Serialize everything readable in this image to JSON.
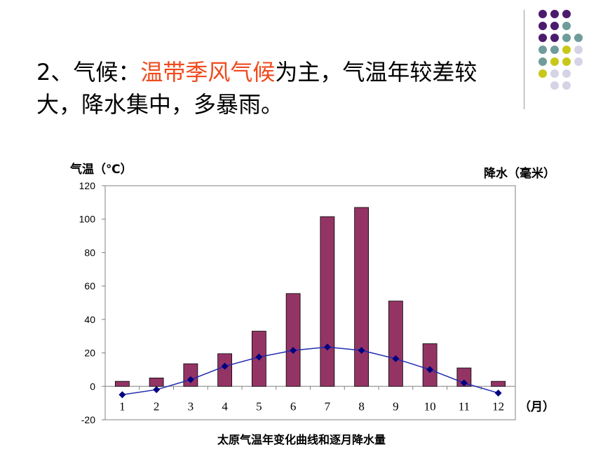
{
  "slide": {
    "line1_prefix": "2、气候：",
    "line1_highlight": "温带季风气候",
    "line1_suffix": "为主，气温年较差较",
    "line2": "大，降水集中，多暴雨。",
    "highlight_color": "#f04a1e"
  },
  "decoration": {
    "dot_colors": [
      "#4b1b6e",
      "#6f9c9b",
      "#c8c81a",
      "#d4d4e6"
    ]
  },
  "chart_data": {
    "type": "bar",
    "title": "",
    "caption": "太原气温年变化曲线和逐月降水量",
    "ylabel_left": "气温（℃）",
    "ylabel_right": "降水（毫米）",
    "xlabel": "（月）",
    "categories": [
      "1",
      "2",
      "3",
      "4",
      "5",
      "6",
      "7",
      "8",
      "9",
      "10",
      "11",
      "12"
    ],
    "yticks": [
      "120",
      "100",
      "80",
      "60",
      "40",
      "20",
      "0",
      "-20"
    ],
    "ylim": [
      -20,
      120
    ],
    "grid": false,
    "series": [
      {
        "kind": "bar",
        "color": "#943465",
        "values": [
          3,
          5,
          13.5,
          19.5,
          33,
          55.5,
          101.5,
          107,
          51,
          25.5,
          11,
          3
        ]
      },
      {
        "kind": "line",
        "color": "#1f2bb0",
        "marker_color": "#00007f",
        "values": [
          -5,
          -2,
          4,
          12,
          17.5,
          21.5,
          23.5,
          21.5,
          16.5,
          10,
          2,
          -4
        ]
      }
    ]
  }
}
